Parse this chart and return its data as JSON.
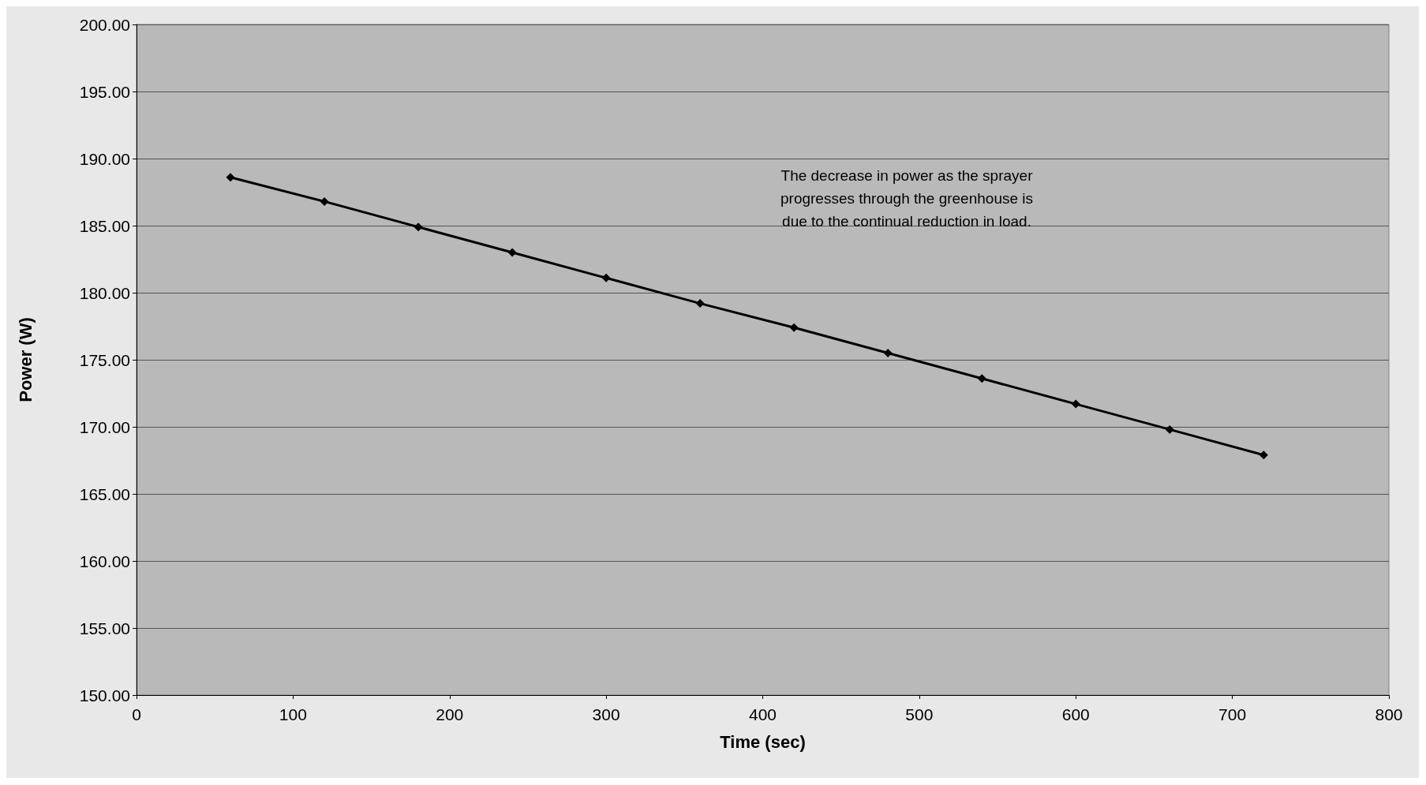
{
  "chart_data": {
    "type": "line",
    "xlabel": "Time (sec)",
    "ylabel": "Power (W)",
    "annotations": [
      "The decrease in power as the sprayer\nprogresses through the greenhouse is\ndue to the continual reduction in load."
    ],
    "x": [
      60,
      120,
      180,
      240,
      300,
      360,
      420,
      480,
      540,
      600,
      660,
      720
    ],
    "series": [
      {
        "color": "#000000",
        "values": [
          188.6,
          186.8,
          184.9,
          183.0,
          181.1,
          179.2,
          177.4,
          175.5,
          173.6,
          171.7,
          169.8,
          167.9
        ]
      }
    ],
    "xlim": [
      0,
      800
    ],
    "xticks": [
      0,
      100,
      200,
      300,
      400,
      500,
      600,
      700,
      800
    ],
    "ylim": [
      150,
      200
    ],
    "yticks": [
      {
        "value": 150,
        "label": "150.00"
      },
      {
        "value": 155,
        "label": "155.00"
      },
      {
        "value": 160,
        "label": "160.00"
      },
      {
        "value": 165,
        "label": "165.00"
      },
      {
        "value": 170,
        "label": "170.00"
      },
      {
        "value": 175,
        "label": "175.00"
      },
      {
        "value": 180,
        "label": "180.00"
      },
      {
        "value": 185,
        "label": "185.00"
      },
      {
        "value": 190,
        "label": "190.00"
      },
      {
        "value": 195,
        "label": "195.00"
      },
      {
        "value": 200,
        "label": "200.00"
      }
    ],
    "grid": "y",
    "marker": "diamond",
    "line_style": "solid"
  }
}
